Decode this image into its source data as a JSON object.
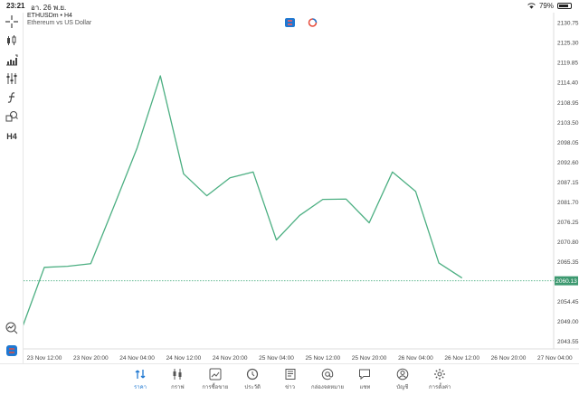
{
  "status_bar": {
    "time": "23:21",
    "date": "อา. 26 พ.ย.",
    "battery": "79%"
  },
  "header": {
    "symbol": "ETHUSDm • H4",
    "description": "Ethereum vs US Dollar"
  },
  "toolbar": {
    "timeframe": "H4"
  },
  "chart_data": {
    "type": "line",
    "color": "#4caf82",
    "current_price": "2060.13",
    "price_ticks": [
      "2130.75",
      "2125.30",
      "2119.85",
      "2114.40",
      "2108.95",
      "2103.50",
      "2098.05",
      "2092.60",
      "2087.15",
      "2081.70",
      "2076.25",
      "2070.80",
      "2065.35",
      "2060.13",
      "2054.45",
      "2049.00",
      "2043.55"
    ],
    "time_ticks": [
      "23 Nov 12:00",
      "23 Nov 20:00",
      "24 Nov 04:00",
      "24 Nov 12:00",
      "24 Nov 20:00",
      "25 Nov 04:00",
      "25 Nov 12:00",
      "25 Nov 20:00",
      "26 Nov 04:00",
      "26 Nov 12:00",
      "26 Nov 20:00",
      "27 Nov 04:00"
    ],
    "x": [
      "23 Nov 08:00",
      "23 Nov 12:00",
      "23 Nov 16:00",
      "23 Nov 20:00",
      "24 Nov 00:00",
      "24 Nov 04:00",
      "24 Nov 08:00",
      "24 Nov 12:00",
      "24 Nov 16:00",
      "24 Nov 20:00",
      "25 Nov 00:00",
      "25 Nov 04:00",
      "25 Nov 08:00",
      "25 Nov 12:00",
      "25 Nov 16:00",
      "25 Nov 20:00",
      "26 Nov 00:00",
      "26 Nov 04:00",
      "26 Nov 08:00",
      "26 Nov 12:00"
    ],
    "values": [
      2046.5,
      2063.8,
      2064.1,
      2064.8,
      2080.5,
      2096.5,
      2116.2,
      2089.4,
      2083.4,
      2088.3,
      2089.9,
      2071.3,
      2078.0,
      2082.4,
      2082.5,
      2076.0,
      2089.9,
      2084.6,
      2065.0,
      2060.9
    ],
    "ylim": [
      2041.5,
      2133.5
    ]
  },
  "bottom_nav": [
    {
      "label": "ราคา",
      "icon": "quotes-icon"
    },
    {
      "label": "กราฟ",
      "icon": "chart-icon"
    },
    {
      "label": "การซื้อขาย",
      "icon": "trade-icon"
    },
    {
      "label": "ประวัติ",
      "icon": "history-icon"
    },
    {
      "label": "ข่าว",
      "icon": "news-icon"
    },
    {
      "label": "กล่องจดหมาย",
      "icon": "mailbox-icon"
    },
    {
      "label": "แชท",
      "icon": "chat-icon"
    },
    {
      "label": "บัญชี",
      "icon": "account-icon"
    },
    {
      "label": "การตั้งค่า",
      "icon": "settings-icon"
    }
  ]
}
